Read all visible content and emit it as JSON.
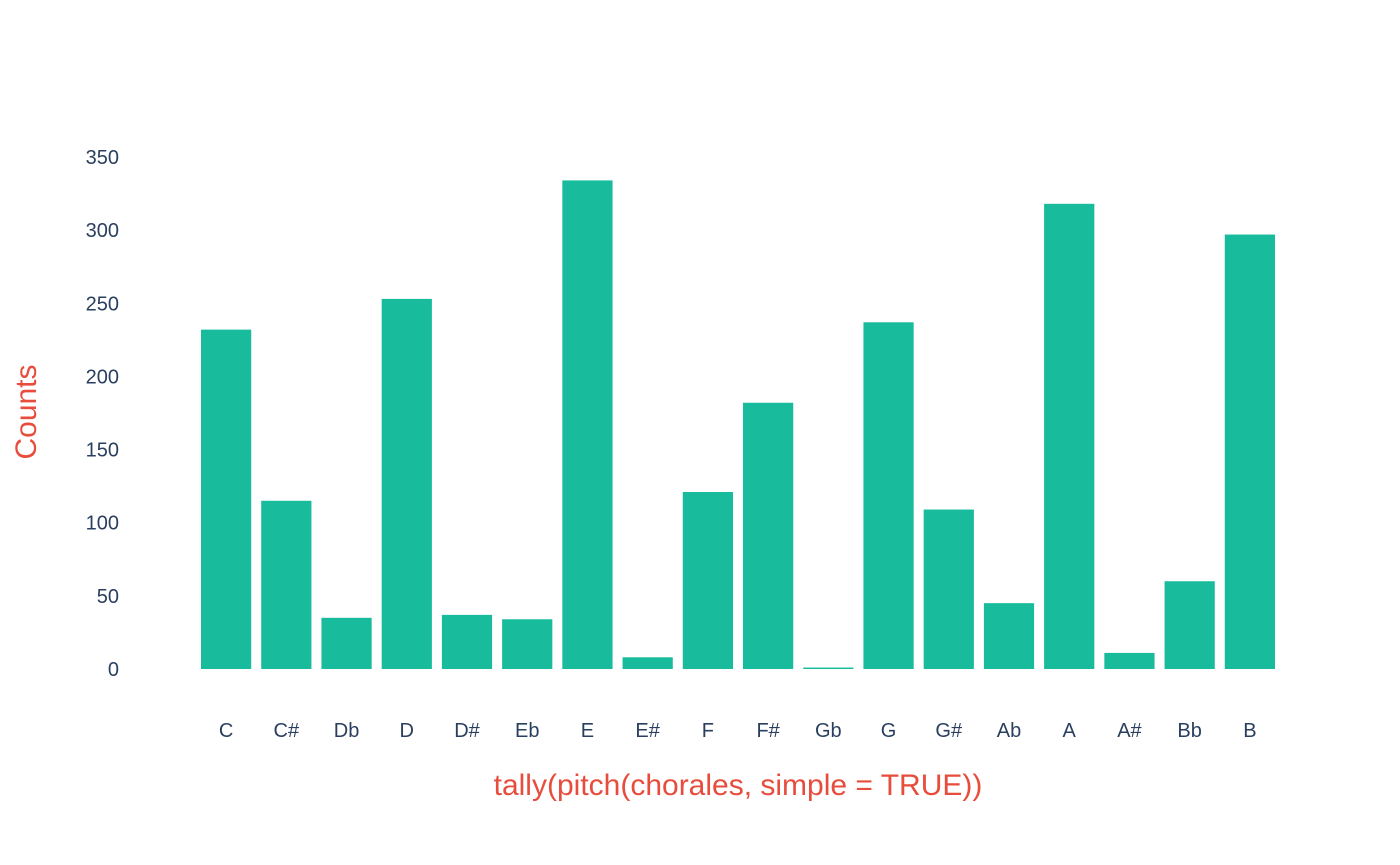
{
  "chart_data": {
    "type": "bar",
    "categories": [
      "C",
      "C#",
      "Db",
      "D",
      "D#",
      "Eb",
      "E",
      "E#",
      "F",
      "F#",
      "Gb",
      "G",
      "G#",
      "Ab",
      "A",
      "A#",
      "Bb",
      "B"
    ],
    "values": [
      232,
      115,
      35,
      253,
      37,
      34,
      334,
      8,
      121,
      182,
      1,
      237,
      109,
      45,
      318,
      11,
      60,
      297
    ],
    "xlabel": "tally(pitch(chorales, simple = TRUE))",
    "ylabel": "Counts",
    "yticks": [
      0,
      50,
      100,
      150,
      200,
      250,
      300,
      350
    ],
    "ylim": [
      0,
      350
    ],
    "grid": false,
    "legend": "none",
    "colors": {
      "bar": "#18bc9c",
      "axis_title": "#e74c3c",
      "tick_label": "#2a3f5f"
    }
  }
}
